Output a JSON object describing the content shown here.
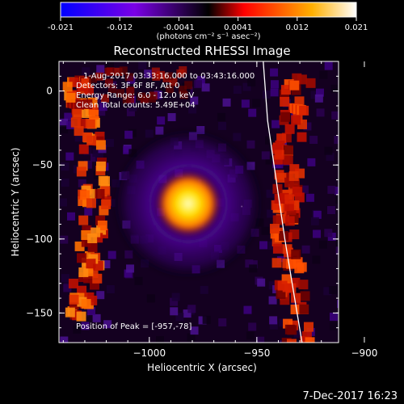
{
  "colorbar": {
    "ticks": [
      "-0.021",
      "-0.012",
      "-0.0041",
      "0.0041",
      "0.012",
      "0.021"
    ],
    "unit_label": "(photons cm⁻² s⁻¹ asec⁻²)",
    "colors": [
      "#0000ff",
      "#7a00e6",
      "#b300b3",
      "#ff0000",
      "#ff9900",
      "#ffffff"
    ]
  },
  "footer": {
    "date": "7-Dec-2017 16:23"
  },
  "chart_data": {
    "type": "heatmap",
    "title": "Reconstructed RHESSI Image",
    "xlabel": "Heliocentric X (arcsec)",
    "ylabel": "Heliocentric Y (arcsec)",
    "xlim": [
      -1042,
      -912
    ],
    "ylim": [
      -170,
      20
    ],
    "xticks": [
      -1000,
      -950,
      -900
    ],
    "yticks": [
      0,
      -50,
      -100,
      -150
    ],
    "x_tick_labels": [
      "−1000",
      "−950",
      "−900"
    ],
    "y_tick_labels": [
      "0",
      "−50",
      "−100",
      "−150"
    ],
    "annotations": [
      "1-Aug-2017 03:33:16.000 to 03:43:16.000",
      "Detectors: 3F 6F 8F, Att 0",
      "Energy Range: 6.0 - 12.0 keV",
      "Clean    Total counts: 5.49E+04"
    ],
    "peak_label": "Position of Peak = [-957,-78]",
    "peak": [
      -957,
      -78
    ],
    "limb_curve": [
      [
        -947,
        20
      ],
      [
        -945,
        -20
      ],
      [
        -941,
        -60
      ],
      [
        -937,
        -100
      ],
      [
        -933,
        -135
      ],
      [
        -929,
        -170
      ]
    ],
    "color_range": [
      -0.021,
      0.021
    ]
  }
}
